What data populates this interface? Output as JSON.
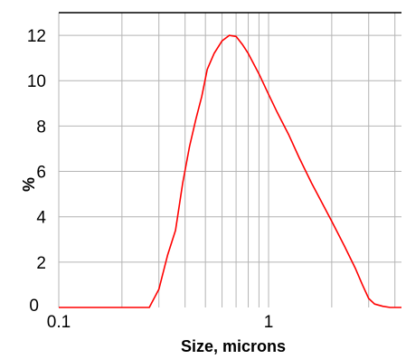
{
  "chart_data": {
    "type": "line",
    "title": "",
    "xlabel": "Size, microns",
    "ylabel": "%",
    "x_scale": "log",
    "xlim": [
      0.1,
      4.3
    ],
    "ylim": [
      0,
      13
    ],
    "x_ticks": [
      {
        "value": 0.1,
        "label": "0.1"
      },
      {
        "value": 1,
        "label": "1"
      }
    ],
    "y_ticks": [
      {
        "value": 0,
        "label": "0"
      },
      {
        "value": 2,
        "label": "2"
      },
      {
        "value": 4,
        "label": "4"
      },
      {
        "value": 6,
        "label": "6"
      },
      {
        "value": 8,
        "label": "8"
      },
      {
        "value": 10,
        "label": "10"
      },
      {
        "value": 12,
        "label": "12"
      }
    ],
    "grid": true,
    "legend": "none",
    "series": [
      {
        "color": "#ff0000",
        "x": [
          0.1,
          0.2,
          0.27,
          0.3,
          0.33,
          0.36,
          0.39,
          0.42,
          0.45,
          0.48,
          0.51,
          0.55,
          0.6,
          0.65,
          0.7,
          0.75,
          0.8,
          0.9,
          1.0,
          1.1,
          1.25,
          1.4,
          1.6,
          1.8,
          2.0,
          2.3,
          2.6,
          2.8,
          3.0,
          3.2,
          3.5,
          3.8,
          4.3
        ],
        "y": [
          0.0,
          0.0,
          0.0,
          0.8,
          2.3,
          3.4,
          5.5,
          7.1,
          8.3,
          9.3,
          10.5,
          11.2,
          11.75,
          12.0,
          11.95,
          11.6,
          11.2,
          10.3,
          9.4,
          8.6,
          7.6,
          6.6,
          5.5,
          4.6,
          3.8,
          2.7,
          1.7,
          1.0,
          0.4,
          0.15,
          0.05,
          0.0,
          0.0
        ]
      }
    ]
  }
}
